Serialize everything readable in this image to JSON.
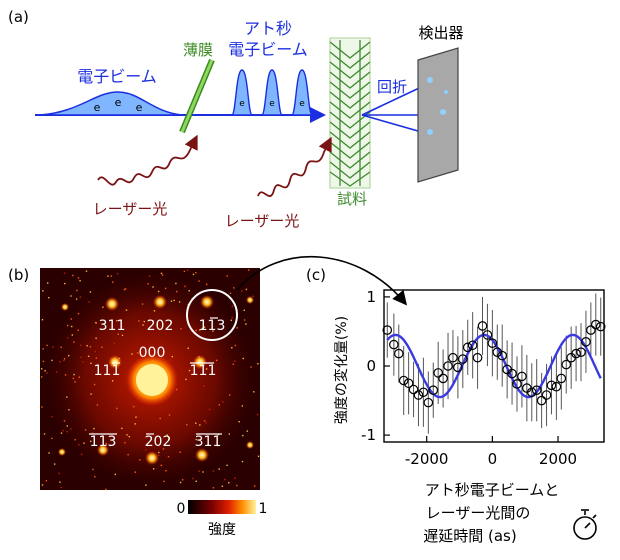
{
  "panel_a": {
    "label": "(a)",
    "electron_beam": "電子ビーム",
    "electron_symbol": "e",
    "thin_film": "薄膜",
    "atto_line1": "アト秒",
    "atto_line2": "電子ビーム",
    "detector": "検出器",
    "diffraction": "回折",
    "laser_light_1": "レーザー光",
    "laser_light_2": "レーザー光",
    "sample": "試料",
    "colors": {
      "beam": "#1b2fe0",
      "film": "#4caf28",
      "laser": "#7a1414",
      "sample": "#3d8a2e",
      "detector": "#a8a8a8"
    }
  },
  "panel_b": {
    "label": "(b)",
    "spots": [
      {
        "label": "311"
      },
      {
        "label": "202"
      },
      {
        "label": "113"
      },
      {
        "label": "111"
      },
      {
        "label": "000"
      },
      {
        "label": "111"
      },
      {
        "label": "113"
      },
      {
        "label": "202"
      },
      {
        "label": "311"
      }
    ],
    "colorbar": {
      "min": "0",
      "max": "1",
      "title": "強度"
    }
  },
  "panel_c": {
    "label": "(c)",
    "chart_data": {
      "type": "line",
      "ylabel": "強度の変化量(%)",
      "xlabel_lines": [
        "アト秒電子ビームと",
        "レーザー光間の",
        "遅延時間 (as)"
      ],
      "xlim": [
        -3300,
        3400
      ],
      "ylim": [
        -1.1,
        1.1
      ],
      "xticks": [
        -2000,
        0,
        2000
      ],
      "xtick_labels": [
        "-2000",
        "0",
        "2000"
      ],
      "yticks": [
        -1,
        0,
        1
      ],
      "ytick_labels": [
        "-1",
        "0",
        "1"
      ],
      "series": [
        {
          "name": "measured",
          "marker": "circle",
          "x": [
            -3200,
            -3000,
            -2850,
            -2700,
            -2550,
            -2400,
            -2250,
            -2100,
            -1950,
            -1800,
            -1650,
            -1500,
            -1350,
            -1200,
            -1050,
            -900,
            -750,
            -600,
            -450,
            -300,
            -150,
            0,
            150,
            300,
            450,
            600,
            750,
            900,
            1050,
            1200,
            1350,
            1500,
            1650,
            1800,
            1950,
            2100,
            2250,
            2400,
            2550,
            2700,
            2850,
            3000,
            3150,
            3300
          ],
          "y": [
            0.52,
            0.31,
            0.18,
            -0.21,
            -0.25,
            -0.34,
            -0.42,
            -0.38,
            -0.53,
            -0.35,
            -0.1,
            -0.18,
            0.0,
            0.12,
            -0.02,
            0.1,
            0.27,
            0.3,
            0.12,
            0.58,
            0.45,
            0.33,
            0.2,
            0.15,
            -0.05,
            -0.11,
            -0.26,
            -0.15,
            -0.32,
            -0.38,
            -0.35,
            -0.5,
            -0.42,
            -0.28,
            -0.3,
            -0.18,
            0.02,
            0.12,
            0.18,
            0.2,
            0.35,
            0.52,
            0.6,
            0.57
          ],
          "err": [
            0.4,
            0.45,
            0.42,
            0.5,
            0.45,
            0.4,
            0.45,
            0.5,
            0.45,
            0.4,
            0.45,
            0.42,
            0.48,
            0.4,
            0.45,
            0.42,
            0.4,
            0.48,
            0.45,
            0.42,
            0.45,
            0.48,
            0.4,
            0.45,
            0.42,
            0.45,
            0.4,
            0.45,
            0.48,
            0.42,
            0.45,
            0.4,
            0.45,
            0.42,
            0.48,
            0.45,
            0.42,
            0.45,
            0.4,
            0.42,
            0.45,
            0.4,
            0.45,
            0.42
          ]
        },
        {
          "name": "fit",
          "type": "line",
          "color": "#3a3ae0",
          "amplitude": 0.45,
          "period": 2700,
          "phase_peak_at": -250
        }
      ]
    }
  }
}
